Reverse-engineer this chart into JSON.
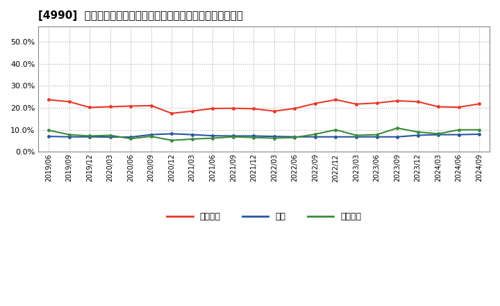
{
  "title": "[4990]  売上債権、在庫、買入債務の総資産に対する比率の推移",
  "x_labels": [
    "2019/06",
    "2019/09",
    "2019/12",
    "2020/03",
    "2020/06",
    "2020/09",
    "2020/12",
    "2021/03",
    "2021/06",
    "2021/09",
    "2021/12",
    "2022/03",
    "2022/06",
    "2022/09",
    "2022/12",
    "2023/03",
    "2023/06",
    "2023/09",
    "2023/12",
    "2024/03",
    "2024/06",
    "2024/09"
  ],
  "売上債権": [
    0.237,
    0.228,
    0.202,
    0.205,
    0.208,
    0.21,
    0.175,
    0.185,
    0.197,
    0.198,
    0.196,
    0.185,
    0.197,
    0.22,
    0.237,
    0.217,
    0.222,
    0.232,
    0.228,
    0.205,
    0.203,
    0.218
  ],
  "在庫": [
    0.07,
    0.068,
    0.068,
    0.067,
    0.067,
    0.078,
    0.082,
    0.078,
    0.073,
    0.072,
    0.072,
    0.07,
    0.068,
    0.068,
    0.068,
    0.068,
    0.068,
    0.068,
    0.075,
    0.078,
    0.078,
    0.08
  ],
  "買入債務": [
    0.098,
    0.078,
    0.072,
    0.075,
    0.06,
    0.07,
    0.052,
    0.058,
    0.062,
    0.068,
    0.065,
    0.062,
    0.065,
    0.08,
    0.1,
    0.075,
    0.078,
    0.108,
    0.09,
    0.082,
    0.1,
    0.1
  ],
  "line_colors": {
    "売上債権": "#e8392a",
    "在庫": "#2855a0",
    "買入債務": "#3a8a3a"
  },
  "legend_labels": [
    "売上債権",
    "在庫",
    "買入債務"
  ],
  "ylim": [
    0.0,
    0.57
  ],
  "yticks": [
    0.0,
    0.1,
    0.2,
    0.3,
    0.4,
    0.5
  ],
  "background_color": "#ffffff",
  "plot_bg_color": "#ffffff",
  "grid_color": "#aaaaaa",
  "title_fontsize": 11
}
